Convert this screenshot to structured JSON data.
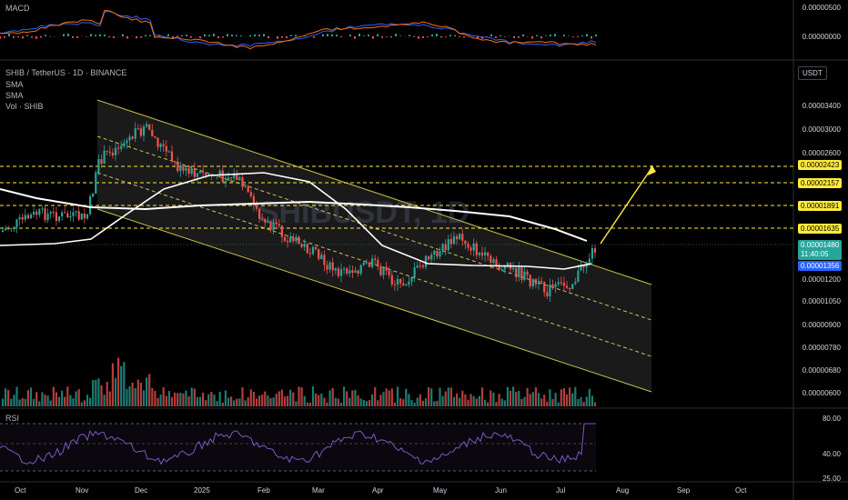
{
  "panes": {
    "macd": {
      "title": "MACD",
      "axis": [
        "0.00000500",
        "0.00000000"
      ]
    },
    "main": {
      "legend": [
        "SHIB / TetherUS · 1D · BINANCE",
        "SMA",
        "SMA",
        "Vol · SHIB"
      ],
      "currency": "USDT",
      "axis": [
        "0.00003400",
        "0.00003000",
        "0.00002600",
        "0.00001200",
        "0.00001050",
        "0.00000900",
        "0.00000780",
        "0.00000680",
        "0.00000600"
      ],
      "levels": [
        "0.00002423",
        "0.00002157",
        "0.00001891",
        "0.00001635"
      ],
      "price_tag": {
        "price": "0.00001480",
        "countdown": "11:40:05"
      },
      "sma_tag": "0.00001356",
      "watermark": "SHIBUSDT, 1D"
    },
    "rsi": {
      "title": "RSI",
      "axis": [
        "80.00",
        "40.00",
        "25.00"
      ]
    }
  },
  "time_axis": [
    "Oct",
    "Nov",
    "Dec",
    "2025",
    "Feb",
    "Mar",
    "Apr",
    "May",
    "Jun",
    "Jul",
    "Aug",
    "Sep",
    "Oct"
  ],
  "colors": {
    "up": "#26a69a",
    "down": "#ef5350",
    "level": "#ffeb3b",
    "channel": "#c9c24a",
    "sma": "#ffffff",
    "rsi": "#7e57c2",
    "macd": "#2962ff",
    "signal": "#ff6d00"
  }
}
